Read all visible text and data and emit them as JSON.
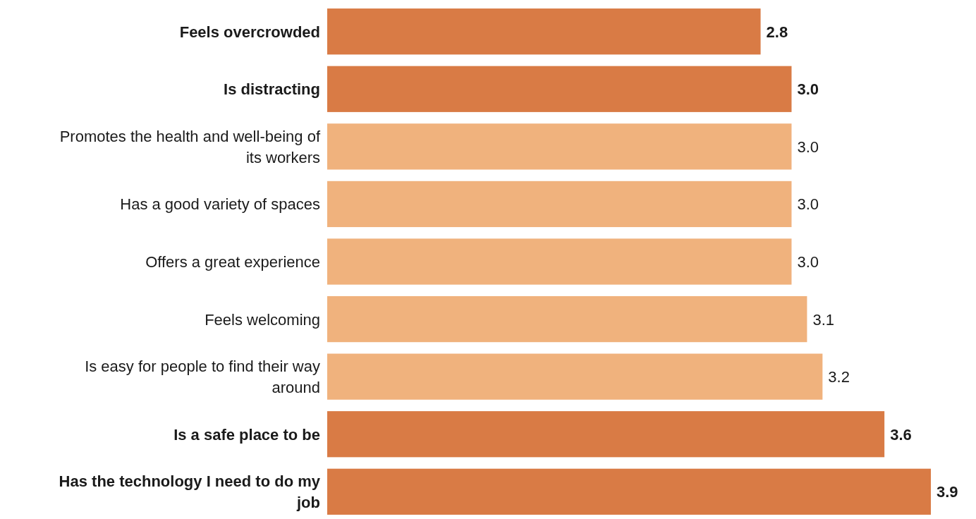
{
  "chart_data": {
    "type": "bar",
    "orientation": "horizontal",
    "categories": [
      "Feels overcrowded",
      "Is distracting",
      "Promotes the health and well-being of its workers",
      "Has a good variety of spaces",
      "Offers a great experience",
      "Feels welcoming",
      "Is easy for people to find their way around",
      "Is a safe place to be",
      "Has the technology I need to do my job"
    ],
    "values": [
      2.8,
      3.0,
      3.0,
      3.0,
      3.0,
      3.1,
      3.2,
      3.6,
      3.9
    ],
    "colors": [
      "#d97b45",
      "#d97b45",
      "#f0b27d",
      "#f0b27d",
      "#f0b27d",
      "#f0b27d",
      "#f0b27d",
      "#d97b45",
      "#d97b45"
    ],
    "value_labels": [
      "2.8",
      "3.0",
      "3.0",
      "3.0",
      "3.0",
      "3.1",
      "3.2",
      "3.6",
      "3.9"
    ]
  }
}
